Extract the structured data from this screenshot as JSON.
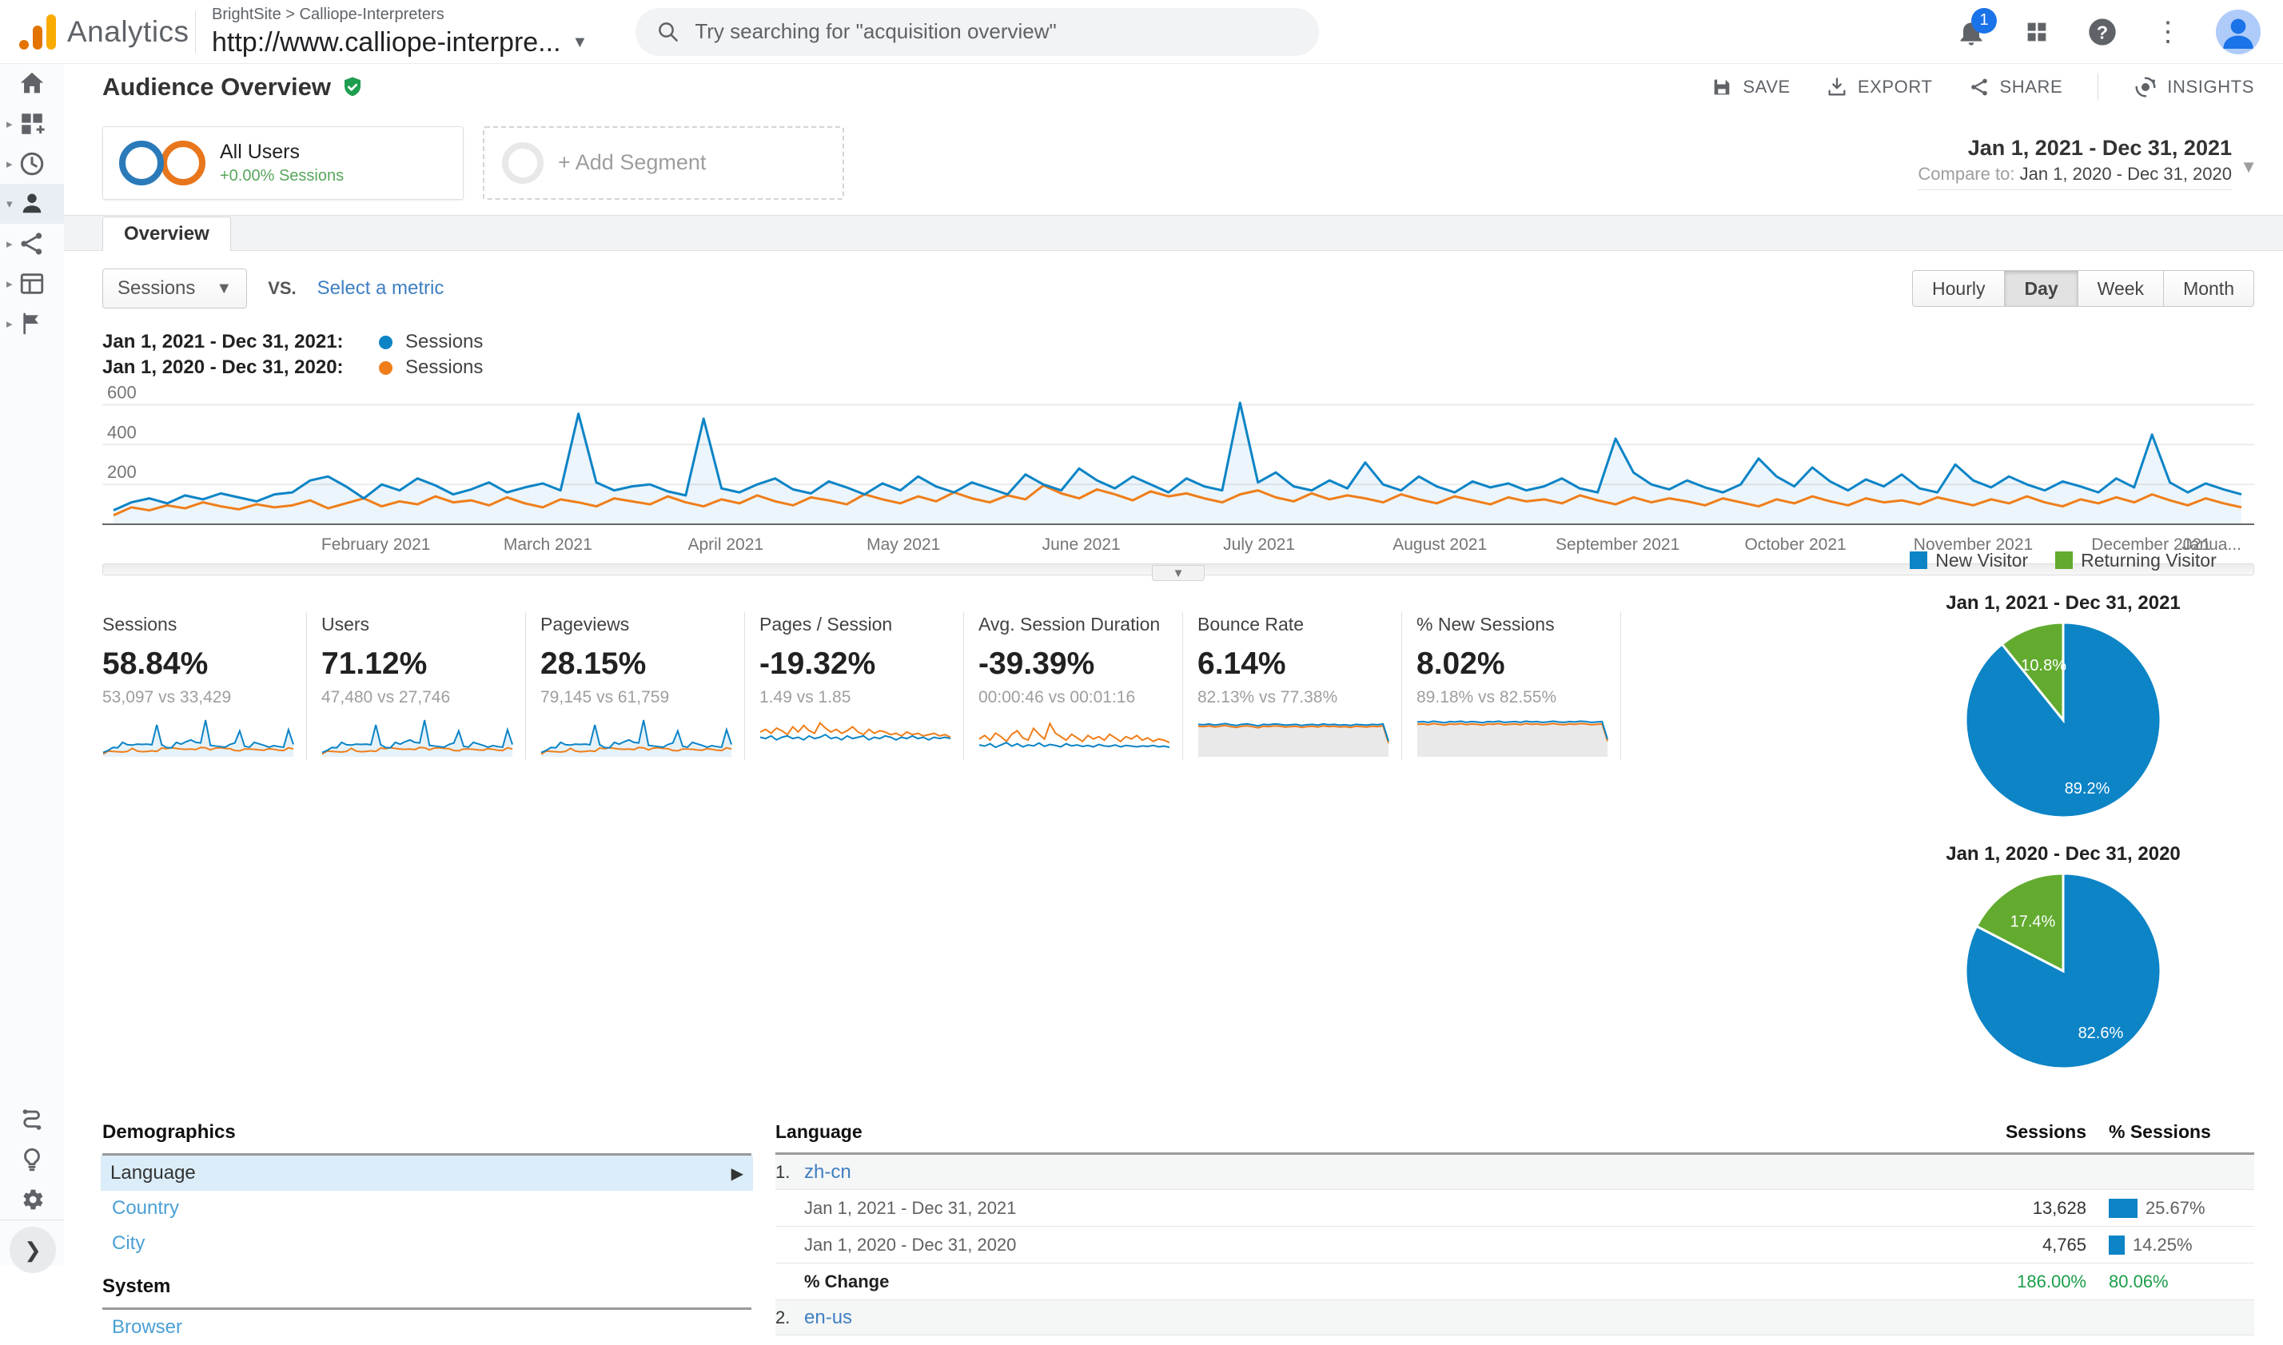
{
  "header": {
    "product": "Analytics",
    "breadcrumb": "BrightSite > Calliope-Interpreters",
    "property": "http://www.calliope-interpre...",
    "search_placeholder": "Try searching for \"acquisition overview\"",
    "notification_count": "1"
  },
  "icons": {
    "logo": "ga-bars",
    "search": "magnifier",
    "notifications": "bell",
    "apps": "grid",
    "help": "question-circle",
    "more": "vertical-dots",
    "account": "avatar",
    "sidebar": [
      "home",
      "customization",
      "realtime",
      "audience",
      "acquisition",
      "behavior",
      "conversions",
      "attribution",
      "discover",
      "admin",
      "collapse-arrow"
    ]
  },
  "toolbar": {
    "title": "Audience Overview",
    "save": "SAVE",
    "export": "EXPORT",
    "share": "SHARE",
    "insights": "INSIGHTS"
  },
  "segments": {
    "all_users": "All Users",
    "all_users_sub": "+0.00% Sessions",
    "add_segment": "+ Add Segment"
  },
  "date_range": {
    "primary": "Jan 1, 2021 - Dec 31, 2021",
    "compare_label": "Compare to:",
    "compare": "Jan 1, 2020 - Dec 31, 2020"
  },
  "tab": "Overview",
  "controls": {
    "metric": "Sessions",
    "vs": "vs.",
    "select_metric": "Select a metric",
    "granularity": [
      "Hourly",
      "Day",
      "Week",
      "Month"
    ],
    "active_granularity": "Day"
  },
  "legend": [
    {
      "date": "Jan 1, 2021 - Dec 31, 2021:",
      "series": "Sessions",
      "color": "#0c84c6"
    },
    {
      "date": "Jan 1, 2020 - Dec 31, 2020:",
      "series": "Sessions",
      "color": "#ef7e1a"
    }
  ],
  "chart_data": [
    {
      "type": "line",
      "title": "Sessions by day, 2021 vs 2020",
      "x_labels": [
        "February 2021",
        "March 2021",
        "April 2021",
        "May 2021",
        "June 2021",
        "July 2021",
        "August 2021",
        "September 2021",
        "October 2021",
        "November 2021",
        "December 2021",
        "Janua..."
      ],
      "ylim": [
        0,
        650
      ],
      "yticks": [
        200,
        400,
        600
      ],
      "grid": true,
      "series": [
        {
          "name": "Sessions (Jan 1, 2021 - Dec 31, 2021)",
          "color": "#0c84c6",
          "values": [
            70,
            110,
            130,
            105,
            145,
            125,
            155,
            135,
            115,
            150,
            160,
            220,
            240,
            190,
            130,
            200,
            170,
            230,
            195,
            150,
            175,
            210,
            160,
            185,
            205,
            170,
            555,
            210,
            170,
            190,
            200,
            165,
            145,
            530,
            180,
            160,
            200,
            230,
            175,
            155,
            215,
            185,
            150,
            205,
            170,
            240,
            190,
            160,
            210,
            180,
            150,
            250,
            200,
            170,
            280,
            220,
            180,
            240,
            200,
            160,
            230,
            190,
            170,
            610,
            210,
            260,
            190,
            170,
            220,
            180,
            310,
            200,
            170,
            240,
            190,
            160,
            215,
            185,
            205,
            170,
            190,
            230,
            180,
            160,
            430,
            260,
            200,
            175,
            220,
            185,
            160,
            200,
            330,
            240,
            190,
            285,
            215,
            170,
            225,
            190,
            250,
            180,
            160,
            300,
            220,
            185,
            240,
            200,
            170,
            215,
            190,
            160,
            230,
            185,
            450,
            210,
            160,
            205,
            175,
            150
          ]
        },
        {
          "name": "Sessions (Jan 1, 2020 - Dec 31, 2020)",
          "color": "#ef7e1a",
          "values": [
            45,
            85,
            70,
            95,
            80,
            110,
            90,
            75,
            100,
            85,
            95,
            120,
            80,
            105,
            130,
            90,
            115,
            100,
            140,
            110,
            120,
            95,
            135,
            105,
            85,
            125,
            110,
            90,
            130,
            115,
            100,
            140,
            110,
            90,
            125,
            105,
            145,
            115,
            95,
            135,
            120,
            100,
            150,
            125,
            105,
            140,
            115,
            160,
            130,
            110,
            145,
            125,
            195,
            155,
            130,
            175,
            150,
            120,
            165,
            140,
            155,
            130,
            110,
            150,
            170,
            135,
            115,
            155,
            125,
            145,
            130,
            110,
            150,
            125,
            105,
            140,
            120,
            100,
            135,
            115,
            125,
            105,
            145,
            120,
            100,
            135,
            110,
            130,
            115,
            95,
            130,
            110,
            90,
            125,
            105,
            140,
            115,
            95,
            130,
            110,
            120,
            100,
            135,
            115,
            95,
            125,
            105,
            140,
            110,
            90,
            125,
            105,
            135,
            110,
            150,
            120,
            95,
            130,
            105,
            85
          ]
        }
      ]
    },
    {
      "type": "pie",
      "title": "Jan 1, 2021 - Dec 31, 2021",
      "labels": [
        "New Visitor",
        "Returning Visitor"
      ],
      "values": [
        89.2,
        10.8
      ],
      "value_labels": [
        "89.2%",
        "10.8%"
      ],
      "colors": [
        "#0c84c6",
        "#62ab2f"
      ]
    },
    {
      "type": "pie",
      "title": "Jan 1, 2020 - Dec 31, 2020",
      "labels": [
        "New Visitor",
        "Returning Visitor"
      ],
      "values": [
        82.6,
        17.4
      ],
      "value_labels": [
        "82.6%",
        "17.4%"
      ],
      "colors": [
        "#0c84c6",
        "#62ab2f"
      ]
    }
  ],
  "scorecards": [
    {
      "label": "Sessions",
      "delta": "58.84%",
      "delta_color": "#1b9e4a",
      "detail": "53,097 vs 33,429",
      "spark": {
        "style": "main"
      }
    },
    {
      "label": "Users",
      "delta": "71.12%",
      "delta_color": "#1b9e4a",
      "detail": "47,480 vs 27,746",
      "spark": {
        "style": "main"
      }
    },
    {
      "label": "Pageviews",
      "delta": "28.15%",
      "delta_color": "#1b9e4a",
      "detail": "79,145 vs 61,759",
      "spark": {
        "style": "main"
      }
    },
    {
      "label": "Pages / Session",
      "delta": "-19.32%",
      "delta_color": "#c5392b",
      "detail": "1.49 vs 1.85",
      "spark": {
        "style": "lines",
        "ymax": 3,
        "orange": [
          1.9,
          2.1,
          1.8,
          2.2,
          2.0,
          1.7,
          2.3,
          1.9,
          2.4,
          2.0,
          1.8,
          2.6,
          2.2,
          1.9,
          2.1,
          1.8,
          2.0,
          2.3,
          1.9,
          1.7,
          2.1,
          1.8,
          2.0,
          1.9,
          1.7,
          1.8,
          1.6,
          1.9,
          1.7,
          1.8,
          1.6,
          1.7,
          1.8,
          1.6,
          1.7,
          1.5
        ],
        "blue": [
          1.5,
          1.4,
          1.6,
          1.3,
          1.5,
          1.6,
          1.4,
          1.5,
          1.3,
          1.6,
          1.4,
          1.5,
          1.7,
          1.4,
          1.5,
          1.3,
          1.6,
          1.4,
          1.5,
          1.6,
          1.3,
          1.5,
          1.4,
          1.6,
          1.5,
          1.3,
          1.5,
          1.4,
          1.6,
          1.4,
          1.5,
          1.3,
          1.5,
          1.4,
          1.5,
          1.4
        ]
      }
    },
    {
      "label": "Avg. Session Duration",
      "delta": "-39.39%",
      "delta_color": "#c5392b",
      "detail": "00:00:46 vs 00:01:16",
      "spark": {
        "style": "lines",
        "ymax": 165,
        "orange": [
          75,
          90,
          70,
          100,
          85,
          65,
          95,
          110,
          80,
          70,
          120,
          95,
          75,
          140,
          100,
          85,
          70,
          95,
          80,
          65,
          90,
          75,
          85,
          70,
          95,
          80,
          65,
          85,
          75,
          90,
          70,
          80,
          65,
          75,
          70,
          60
        ],
        "blue": [
          50,
          45,
          55,
          40,
          50,
          60,
          45,
          55,
          42,
          50,
          46,
          58,
          44,
          52,
          48,
          42,
          55,
          46,
          50,
          44,
          48,
          42,
          52,
          46,
          44,
          50,
          42,
          48,
          45,
          42,
          46,
          44,
          48,
          42,
          45,
          40
        ]
      }
    },
    {
      "label": "Bounce Rate",
      "delta": "6.14%",
      "delta_color": "#c5392b",
      "detail": "82.13% vs 77.38%",
      "spark": {
        "style": "plateau",
        "ymax": 100,
        "blue": [
          83,
          82,
          84,
          81,
          83,
          85,
          82,
          80,
          83,
          84,
          82,
          79,
          83,
          82,
          84,
          83,
          81,
          82,
          83,
          80,
          82,
          83,
          81,
          84,
          82,
          83,
          81,
          82,
          80,
          83,
          82,
          81,
          83,
          82,
          84,
          40
        ],
        "orange": [
          78,
          77,
          79,
          76,
          78,
          80,
          77,
          75,
          78,
          79,
          77,
          74,
          78,
          77,
          79,
          78,
          76,
          77,
          78,
          75,
          77,
          78,
          76,
          79,
          77,
          78,
          76,
          77,
          75,
          78,
          77,
          76,
          78,
          77,
          79,
          35
        ]
      }
    },
    {
      "label": "% New Sessions",
      "delta": "8.02%",
      "delta_color": "#1b9e4a",
      "detail": "89.18% vs 82.55%",
      "spark": {
        "style": "plateau",
        "ymax": 100,
        "blue": [
          89,
          90,
          88,
          91,
          89,
          87,
          90,
          89,
          91,
          88,
          90,
          89,
          87,
          90,
          89,
          91,
          88,
          89,
          90,
          88,
          91,
          89,
          90,
          88,
          89,
          91,
          89,
          88,
          90,
          89,
          91,
          90,
          88,
          89,
          90,
          45
        ],
        "orange": [
          83,
          84,
          82,
          85,
          83,
          81,
          84,
          83,
          85,
          82,
          84,
          83,
          81,
          84,
          83,
          85,
          82,
          83,
          84,
          82,
          85,
          83,
          84,
          82,
          83,
          85,
          83,
          82,
          84,
          83,
          85,
          84,
          82,
          83,
          84,
          40
        ]
      }
    }
  ],
  "visitors_legend": [
    "New Visitor",
    "Returning Visitor"
  ],
  "demographics": {
    "title": "Demographics",
    "items": [
      "Language",
      "Country",
      "City"
    ],
    "selected": "Language",
    "system_title": "System",
    "system_items": [
      "Browser"
    ]
  },
  "language_table": {
    "headers": [
      "Language",
      "Sessions",
      "% Sessions"
    ],
    "rows": [
      {
        "rank": "1.",
        "language": "zh-cn",
        "periods": [
          {
            "label": "Jan 1, 2021 - Dec 31, 2021",
            "sessions": "13,628",
            "pct": "25.67%",
            "bar_pct": 25.67
          },
          {
            "label": "Jan 1, 2020 - Dec 31, 2020",
            "sessions": "4,765",
            "pct": "14.25%",
            "bar_pct": 14.25
          }
        ],
        "change": {
          "label": "% Change",
          "sessions": "186.00%",
          "pct": "80.06%"
        }
      },
      {
        "rank": "2.",
        "language": "en-us"
      }
    ]
  }
}
